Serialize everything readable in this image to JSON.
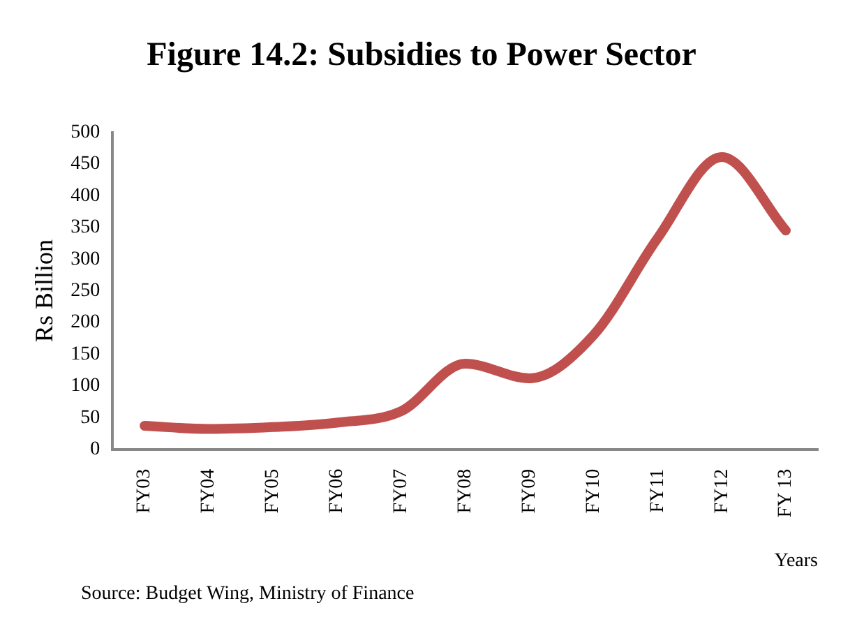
{
  "chart_data": {
    "type": "line",
    "title": "Figure 14.2: Subsidies to Power Sector",
    "ylabel": "Rs Billion",
    "xlabel": "Years",
    "categories": [
      "FY03",
      "FY04",
      "FY05",
      "FY06",
      "FY07",
      "FY08",
      "FY09",
      "FY10",
      "FY11",
      "FY12",
      "FY 13"
    ],
    "series": [
      {
        "color": "#c0504d",
        "values": [
          37,
          32,
          35,
          42,
          60,
          135,
          112,
          180,
          333,
          461,
          345
        ]
      }
    ],
    "ylim": [
      0,
      500
    ],
    "yticks": [
      0,
      50,
      100,
      150,
      200,
      250,
      300,
      350,
      400,
      450,
      500
    ],
    "grid": false,
    "legend": false,
    "marker": "none",
    "line_style": "solid",
    "annotations": [
      "Source: Budget Wing, Ministry of Finance"
    ]
  }
}
